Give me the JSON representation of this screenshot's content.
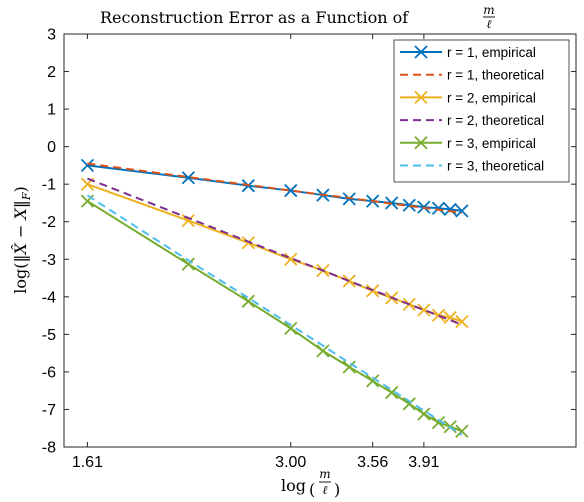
{
  "chart_data": {
    "type": "line",
    "title": "Reconstruction Error as a Function of m/ℓ",
    "xlabel": "log(m/ℓ)",
    "ylabel": "log(‖X̂ − X‖F)",
    "xlim": [
      1.45,
      4.95
    ],
    "ylim": [
      -8,
      3
    ],
    "xticks": [
      1.61,
      3.0,
      3.56,
      3.91
    ],
    "xtick_labels": [
      "1.61",
      "3.00",
      "3.56",
      "3.91"
    ],
    "yticks": [
      3,
      2,
      1,
      0,
      -1,
      -2,
      -3,
      -4,
      -5,
      -6,
      -7,
      -8
    ],
    "ytick_labels": [
      "3",
      "2",
      "1",
      "0",
      "-1",
      "-2",
      "-3",
      "-4",
      "-5",
      "-6",
      "-7",
      "-8"
    ],
    "grid": false,
    "legend_position": "top-right",
    "x": [
      1.61,
      2.3,
      2.71,
      3.0,
      3.22,
      3.4,
      3.56,
      3.69,
      3.81,
      3.91,
      4.01,
      4.09,
      4.17
    ],
    "series": [
      {
        "name": "r = 1, empirical",
        "style": "solid",
        "marker": "x",
        "color": "#0072BD",
        "values": [
          -0.5,
          -0.83,
          -1.04,
          -1.17,
          -1.29,
          -1.39,
          -1.45,
          -1.5,
          -1.56,
          -1.61,
          -1.64,
          -1.67,
          -1.71
        ]
      },
      {
        "name": "r = 1, theoretical",
        "style": "dashed",
        "marker": "none",
        "color": "#D95319",
        "values": [
          -0.45,
          -0.81,
          -1.02,
          -1.17,
          -1.28,
          -1.37,
          -1.45,
          -1.52,
          -1.58,
          -1.63,
          -1.68,
          -1.72,
          -1.76
        ]
      },
      {
        "name": "r = 2, empirical",
        "style": "solid",
        "marker": "x",
        "color": "#EDB120",
        "values": [
          -1.0,
          -1.97,
          -2.56,
          -3.0,
          -3.3,
          -3.58,
          -3.84,
          -4.03,
          -4.2,
          -4.35,
          -4.49,
          -4.55,
          -4.66
        ]
      },
      {
        "name": "r = 2, theoretical",
        "style": "dashed",
        "marker": "none",
        "color": "#7E2F8E",
        "values": [
          -0.85,
          -1.9,
          -2.53,
          -2.97,
          -3.3,
          -3.58,
          -3.82,
          -4.02,
          -4.2,
          -4.35,
          -4.5,
          -4.62,
          -4.74
        ]
      },
      {
        "name": "r = 3, empirical",
        "style": "solid",
        "marker": "x",
        "color": "#77AC30",
        "values": [
          -1.45,
          -3.13,
          -4.12,
          -4.84,
          -5.44,
          -5.87,
          -6.24,
          -6.55,
          -6.85,
          -7.12,
          -7.35,
          -7.46,
          -7.58
        ]
      },
      {
        "name": "r = 3, theoretical",
        "style": "dashed",
        "marker": "none",
        "color": "#4DBEEE",
        "values": [
          -1.3,
          -3.03,
          -4.03,
          -4.75,
          -5.3,
          -5.76,
          -6.15,
          -6.48,
          -6.78,
          -7.03,
          -7.28,
          -7.48,
          -7.68
        ]
      }
    ]
  }
}
